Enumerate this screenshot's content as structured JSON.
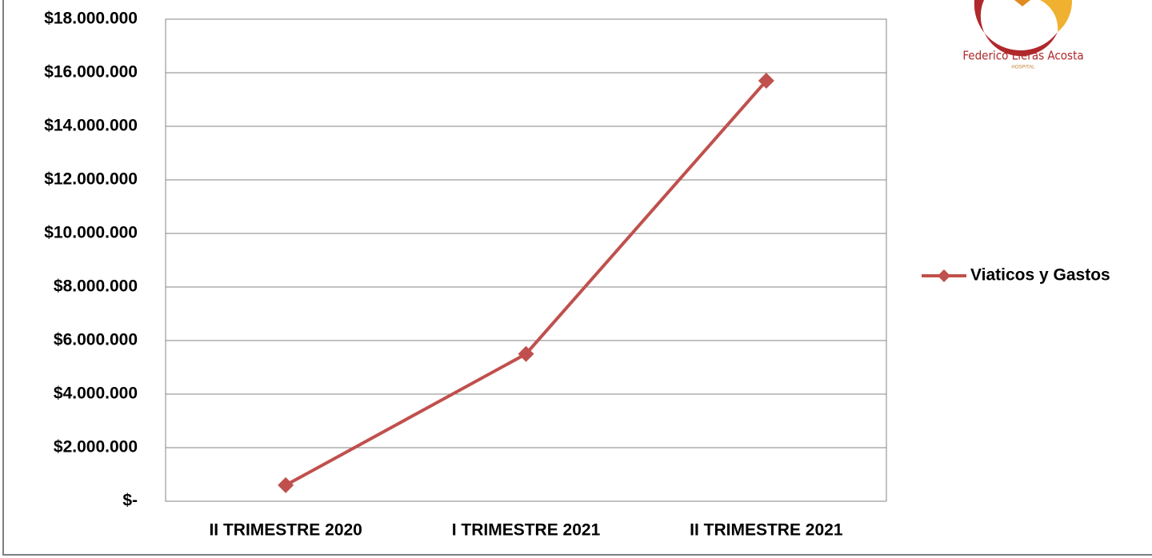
{
  "chart_data": {
    "type": "line",
    "categories": [
      "II TRIMESTRE 2020",
      "I TRIMESTRE 2021",
      "II TRIMESTRE 2021"
    ],
    "series": [
      {
        "name": "Viaticos y Gastos",
        "color": "#c0504d",
        "values": [
          600000,
          5500000,
          15700000
        ]
      }
    ],
    "ylim": [
      0,
      18000000
    ],
    "yticks": [
      {
        "value": 0,
        "label": "$-"
      },
      {
        "value": 2000000,
        "label": "$2.000.000"
      },
      {
        "value": 4000000,
        "label": "$4.000.000"
      },
      {
        "value": 6000000,
        "label": "$6.000.000"
      },
      {
        "value": 8000000,
        "label": "$8.000.000"
      },
      {
        "value": 10000000,
        "label": "$10.000.000"
      },
      {
        "value": 12000000,
        "label": "$12.000.000"
      },
      {
        "value": 14000000,
        "label": "$14.000.000"
      },
      {
        "value": 16000000,
        "label": "$16.000.000"
      },
      {
        "value": 18000000,
        "label": "$18.000.000"
      }
    ],
    "grid": true,
    "legend": "right"
  },
  "logo": {
    "name": "Federico Lleras Acosta",
    "subtitle": "HOSPITAL"
  }
}
